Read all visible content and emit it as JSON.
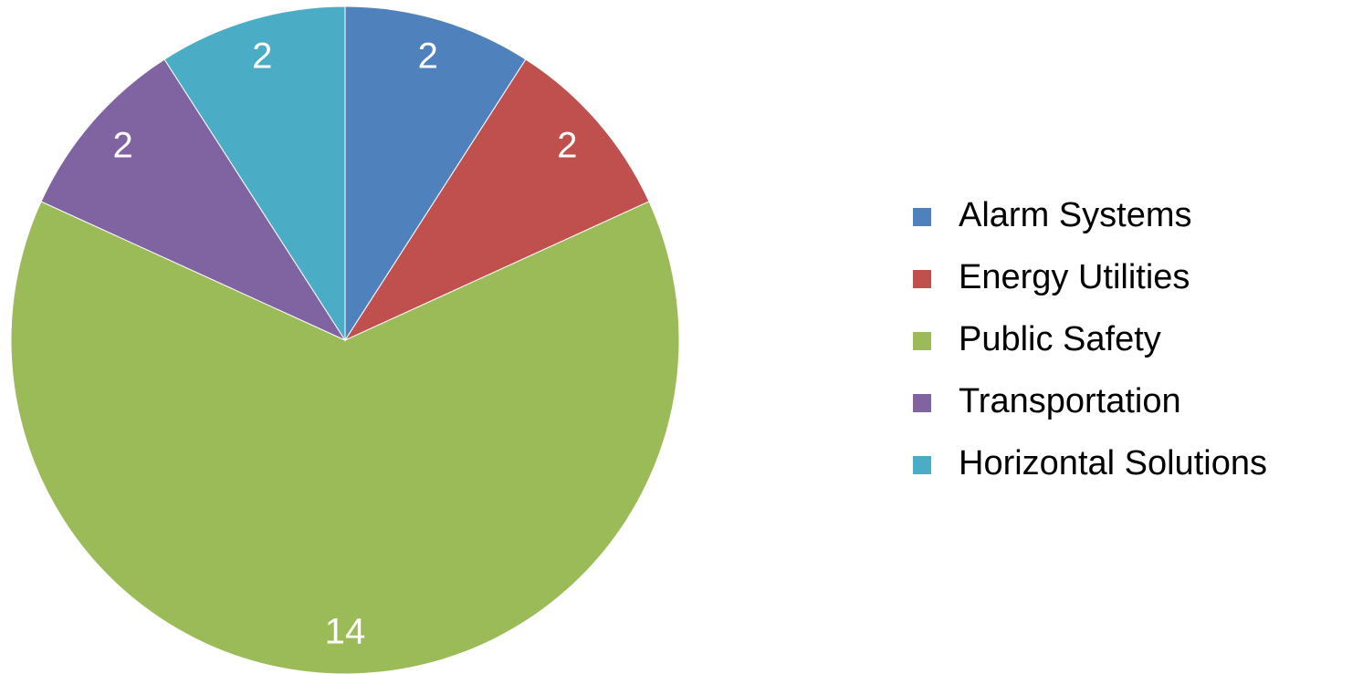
{
  "chart_data": {
    "type": "pie",
    "categories": [
      "Alarm Systems",
      "Energy Utilities",
      "Public Safety",
      "Transportation",
      "Horizontal Solutions"
    ],
    "values": [
      2,
      2,
      14,
      2,
      2
    ],
    "colors": [
      "#4f81bd",
      "#c0504d",
      "#9bbb59",
      "#8064a2",
      "#4bacc6"
    ],
    "legend": "right"
  }
}
